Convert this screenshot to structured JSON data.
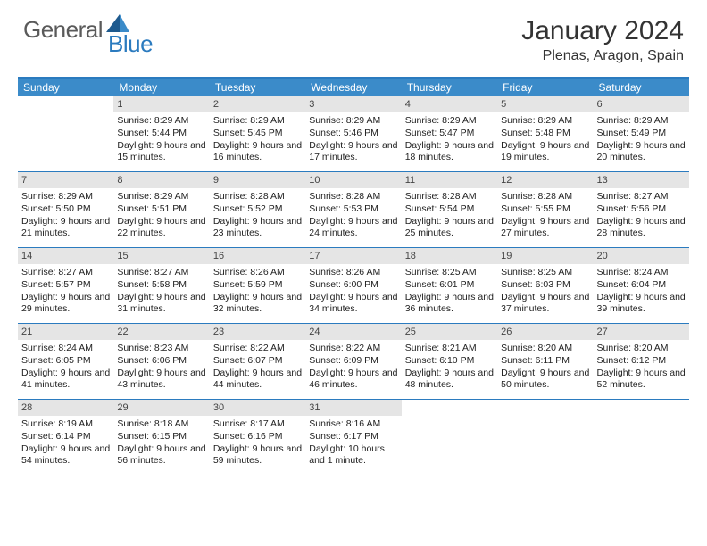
{
  "brand": {
    "general": "General",
    "blue": "Blue"
  },
  "title": {
    "month": "January 2024",
    "location": "Plenas, Aragon, Spain"
  },
  "colors": {
    "accent": "#2b7bbf",
    "header_bg": "#3b8bc9",
    "day_header_bg": "#e5e5e5",
    "text": "#333333",
    "white": "#ffffff"
  },
  "weekdays": [
    "Sunday",
    "Monday",
    "Tuesday",
    "Wednesday",
    "Thursday",
    "Friday",
    "Saturday"
  ],
  "weeks": [
    [
      {
        "n": "",
        "sr": "",
        "ss": "",
        "dl": ""
      },
      {
        "n": "1",
        "sr": "Sunrise: 8:29 AM",
        "ss": "Sunset: 5:44 PM",
        "dl": "Daylight: 9 hours and 15 minutes."
      },
      {
        "n": "2",
        "sr": "Sunrise: 8:29 AM",
        "ss": "Sunset: 5:45 PM",
        "dl": "Daylight: 9 hours and 16 minutes."
      },
      {
        "n": "3",
        "sr": "Sunrise: 8:29 AM",
        "ss": "Sunset: 5:46 PM",
        "dl": "Daylight: 9 hours and 17 minutes."
      },
      {
        "n": "4",
        "sr": "Sunrise: 8:29 AM",
        "ss": "Sunset: 5:47 PM",
        "dl": "Daylight: 9 hours and 18 minutes."
      },
      {
        "n": "5",
        "sr": "Sunrise: 8:29 AM",
        "ss": "Sunset: 5:48 PM",
        "dl": "Daylight: 9 hours and 19 minutes."
      },
      {
        "n": "6",
        "sr": "Sunrise: 8:29 AM",
        "ss": "Sunset: 5:49 PM",
        "dl": "Daylight: 9 hours and 20 minutes."
      }
    ],
    [
      {
        "n": "7",
        "sr": "Sunrise: 8:29 AM",
        "ss": "Sunset: 5:50 PM",
        "dl": "Daylight: 9 hours and 21 minutes."
      },
      {
        "n": "8",
        "sr": "Sunrise: 8:29 AM",
        "ss": "Sunset: 5:51 PM",
        "dl": "Daylight: 9 hours and 22 minutes."
      },
      {
        "n": "9",
        "sr": "Sunrise: 8:28 AM",
        "ss": "Sunset: 5:52 PM",
        "dl": "Daylight: 9 hours and 23 minutes."
      },
      {
        "n": "10",
        "sr": "Sunrise: 8:28 AM",
        "ss": "Sunset: 5:53 PM",
        "dl": "Daylight: 9 hours and 24 minutes."
      },
      {
        "n": "11",
        "sr": "Sunrise: 8:28 AM",
        "ss": "Sunset: 5:54 PM",
        "dl": "Daylight: 9 hours and 25 minutes."
      },
      {
        "n": "12",
        "sr": "Sunrise: 8:28 AM",
        "ss": "Sunset: 5:55 PM",
        "dl": "Daylight: 9 hours and 27 minutes."
      },
      {
        "n": "13",
        "sr": "Sunrise: 8:27 AM",
        "ss": "Sunset: 5:56 PM",
        "dl": "Daylight: 9 hours and 28 minutes."
      }
    ],
    [
      {
        "n": "14",
        "sr": "Sunrise: 8:27 AM",
        "ss": "Sunset: 5:57 PM",
        "dl": "Daylight: 9 hours and 29 minutes."
      },
      {
        "n": "15",
        "sr": "Sunrise: 8:27 AM",
        "ss": "Sunset: 5:58 PM",
        "dl": "Daylight: 9 hours and 31 minutes."
      },
      {
        "n": "16",
        "sr": "Sunrise: 8:26 AM",
        "ss": "Sunset: 5:59 PM",
        "dl": "Daylight: 9 hours and 32 minutes."
      },
      {
        "n": "17",
        "sr": "Sunrise: 8:26 AM",
        "ss": "Sunset: 6:00 PM",
        "dl": "Daylight: 9 hours and 34 minutes."
      },
      {
        "n": "18",
        "sr": "Sunrise: 8:25 AM",
        "ss": "Sunset: 6:01 PM",
        "dl": "Daylight: 9 hours and 36 minutes."
      },
      {
        "n": "19",
        "sr": "Sunrise: 8:25 AM",
        "ss": "Sunset: 6:03 PM",
        "dl": "Daylight: 9 hours and 37 minutes."
      },
      {
        "n": "20",
        "sr": "Sunrise: 8:24 AM",
        "ss": "Sunset: 6:04 PM",
        "dl": "Daylight: 9 hours and 39 minutes."
      }
    ],
    [
      {
        "n": "21",
        "sr": "Sunrise: 8:24 AM",
        "ss": "Sunset: 6:05 PM",
        "dl": "Daylight: 9 hours and 41 minutes."
      },
      {
        "n": "22",
        "sr": "Sunrise: 8:23 AM",
        "ss": "Sunset: 6:06 PM",
        "dl": "Daylight: 9 hours and 43 minutes."
      },
      {
        "n": "23",
        "sr": "Sunrise: 8:22 AM",
        "ss": "Sunset: 6:07 PM",
        "dl": "Daylight: 9 hours and 44 minutes."
      },
      {
        "n": "24",
        "sr": "Sunrise: 8:22 AM",
        "ss": "Sunset: 6:09 PM",
        "dl": "Daylight: 9 hours and 46 minutes."
      },
      {
        "n": "25",
        "sr": "Sunrise: 8:21 AM",
        "ss": "Sunset: 6:10 PM",
        "dl": "Daylight: 9 hours and 48 minutes."
      },
      {
        "n": "26",
        "sr": "Sunrise: 8:20 AM",
        "ss": "Sunset: 6:11 PM",
        "dl": "Daylight: 9 hours and 50 minutes."
      },
      {
        "n": "27",
        "sr": "Sunrise: 8:20 AM",
        "ss": "Sunset: 6:12 PM",
        "dl": "Daylight: 9 hours and 52 minutes."
      }
    ],
    [
      {
        "n": "28",
        "sr": "Sunrise: 8:19 AM",
        "ss": "Sunset: 6:14 PM",
        "dl": "Daylight: 9 hours and 54 minutes."
      },
      {
        "n": "29",
        "sr": "Sunrise: 8:18 AM",
        "ss": "Sunset: 6:15 PM",
        "dl": "Daylight: 9 hours and 56 minutes."
      },
      {
        "n": "30",
        "sr": "Sunrise: 8:17 AM",
        "ss": "Sunset: 6:16 PM",
        "dl": "Daylight: 9 hours and 59 minutes."
      },
      {
        "n": "31",
        "sr": "Sunrise: 8:16 AM",
        "ss": "Sunset: 6:17 PM",
        "dl": "Daylight: 10 hours and 1 minute."
      },
      {
        "n": "",
        "sr": "",
        "ss": "",
        "dl": ""
      },
      {
        "n": "",
        "sr": "",
        "ss": "",
        "dl": ""
      },
      {
        "n": "",
        "sr": "",
        "ss": "",
        "dl": ""
      }
    ]
  ]
}
